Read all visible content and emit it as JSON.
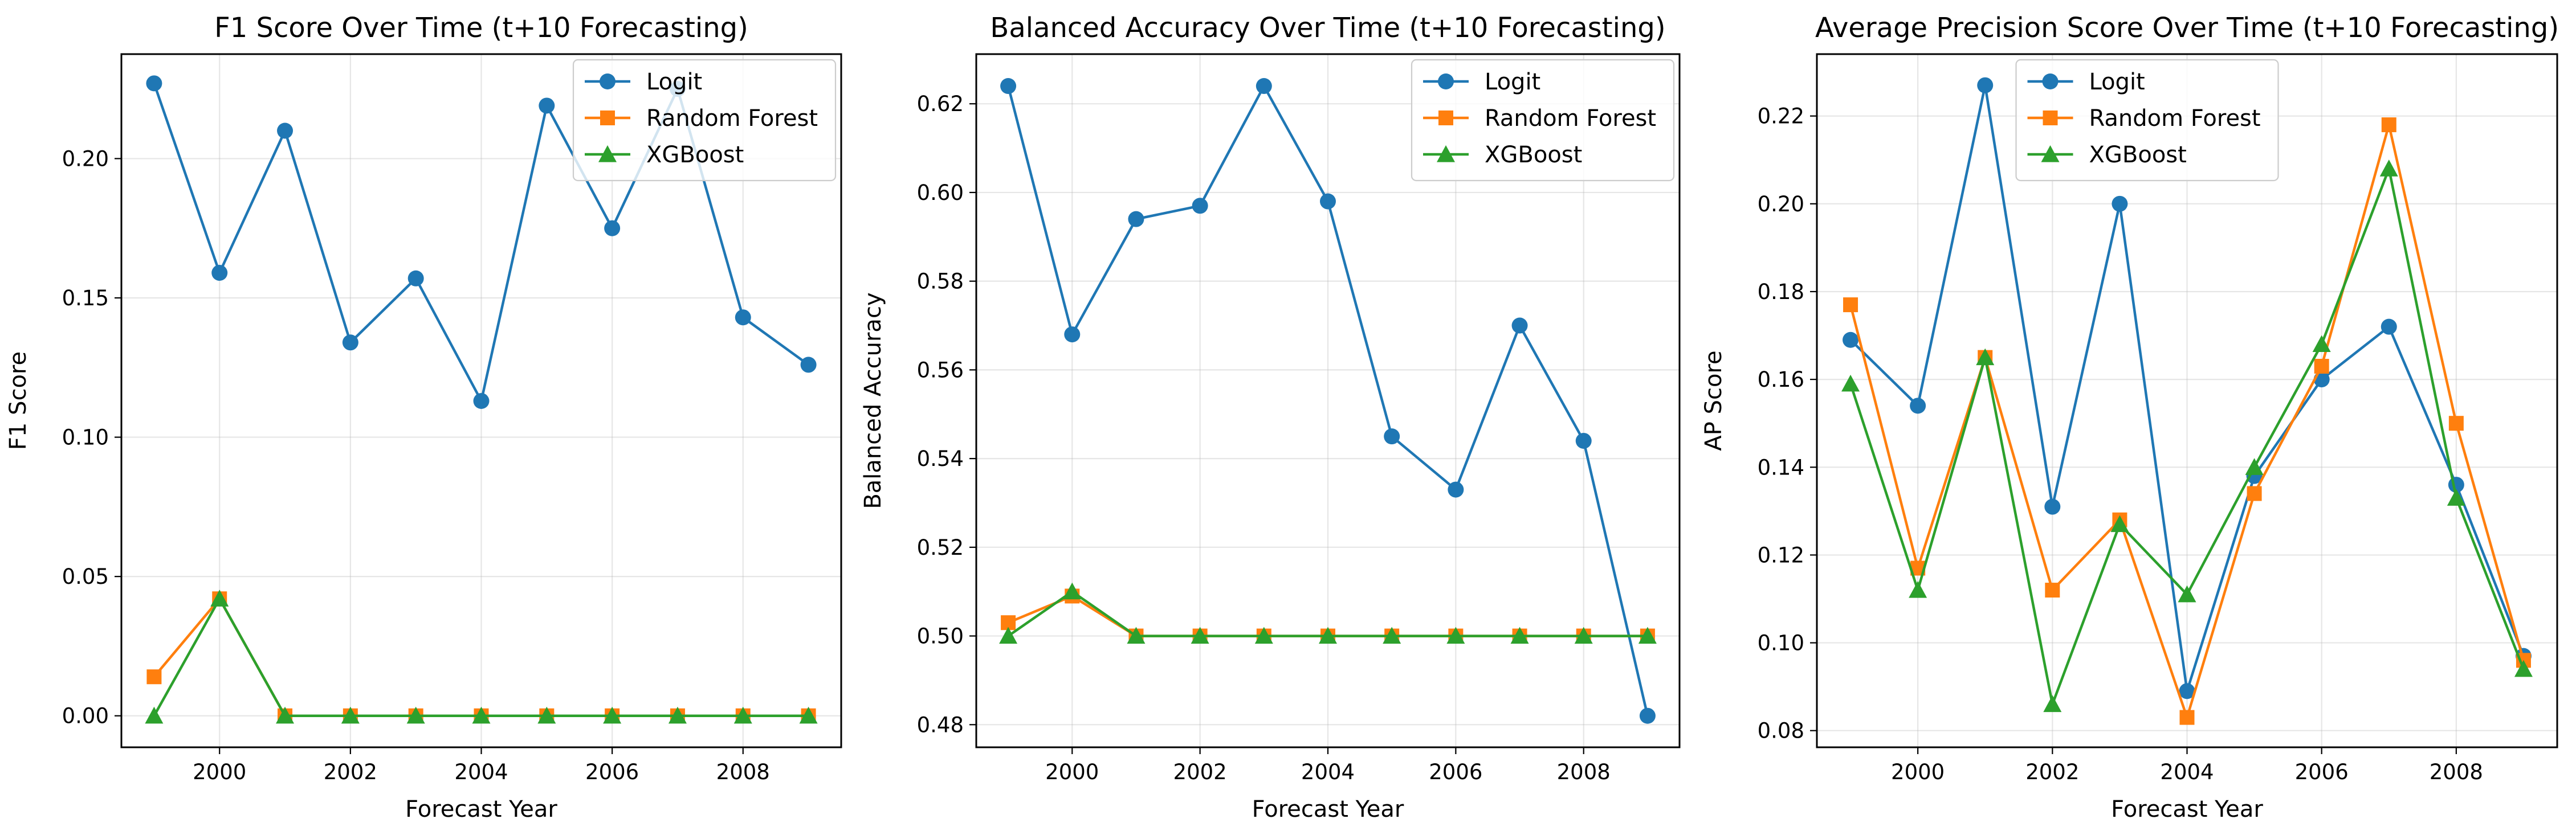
{
  "colors": {
    "Logit": "#1f77b4",
    "Random Forest": "#ff7f0e",
    "XGBoost": "#2ca02c"
  },
  "markers": {
    "Logit": "circle",
    "Random Forest": "square",
    "XGBoost": "triangle"
  },
  "chart_data": [
    {
      "type": "line",
      "title": "F1 Score Over Time (t+10 Forecasting)",
      "xlabel": "Forecast Year",
      "ylabel": "F1 Score",
      "x": [
        1999,
        2000,
        2001,
        2002,
        2003,
        2004,
        2005,
        2006,
        2007,
        2008,
        2009
      ],
      "xlim": [
        1998.5,
        2009.5
      ],
      "xticks": [
        2000,
        2002,
        2004,
        2006,
        2008
      ],
      "ylim": [
        -0.0113,
        0.2375
      ],
      "yticks": [
        0.0,
        0.05,
        0.1,
        0.15,
        0.2
      ],
      "ytick_labels": [
        "0.00",
        "0.05",
        "0.10",
        "0.15",
        "0.20"
      ],
      "grid": true,
      "legend": "top-right",
      "series": [
        {
          "name": "Logit",
          "values": [
            0.227,
            0.159,
            0.21,
            0.134,
            0.157,
            0.113,
            0.219,
            0.175,
            0.225,
            0.143,
            0.126
          ]
        },
        {
          "name": "Random Forest",
          "values": [
            0.014,
            0.042,
            0.0,
            0.0,
            0.0,
            0.0,
            0.0,
            0.0,
            0.0,
            0.0,
            0.0
          ]
        },
        {
          "name": "XGBoost",
          "values": [
            0.0,
            0.042,
            0.0,
            0.0,
            0.0,
            0.0,
            0.0,
            0.0,
            0.0,
            0.0,
            0.0
          ]
        }
      ]
    },
    {
      "type": "line",
      "title": "Balanced Accuracy Over Time (t+10 Forecasting)",
      "xlabel": "Forecast Year",
      "ylabel": "Balanced Accuracy",
      "x": [
        1999,
        2000,
        2001,
        2002,
        2003,
        2004,
        2005,
        2006,
        2007,
        2008,
        2009
      ],
      "xlim": [
        1998.5,
        2009.5
      ],
      "xticks": [
        2000,
        2002,
        2004,
        2006,
        2008
      ],
      "ylim": [
        0.4749,
        0.6312
      ],
      "yticks": [
        0.48,
        0.5,
        0.52,
        0.54,
        0.56,
        0.58,
        0.6,
        0.62
      ],
      "ytick_labels": [
        "0.48",
        "0.50",
        "0.52",
        "0.54",
        "0.56",
        "0.58",
        "0.60",
        "0.62"
      ],
      "grid": true,
      "legend": "top-right",
      "series": [
        {
          "name": "Logit",
          "values": [
            0.624,
            0.568,
            0.594,
            0.597,
            0.624,
            0.598,
            0.545,
            0.533,
            0.57,
            0.544,
            0.482
          ]
        },
        {
          "name": "Random Forest",
          "values": [
            0.503,
            0.509,
            0.5,
            0.5,
            0.5,
            0.5,
            0.5,
            0.5,
            0.5,
            0.5,
            0.5
          ]
        },
        {
          "name": "XGBoost",
          "values": [
            0.5,
            0.51,
            0.5,
            0.5,
            0.5,
            0.5,
            0.5,
            0.5,
            0.5,
            0.5,
            0.5
          ]
        }
      ]
    },
    {
      "type": "line",
      "title": "Average Precision Score Over Time (t+10 Forecasting)",
      "xlabel": "Forecast Year",
      "ylabel": "AP Score",
      "x": [
        1999,
        2000,
        2001,
        2002,
        2003,
        2004,
        2005,
        2006,
        2007,
        2008,
        2009
      ],
      "xlim": [
        1998.5,
        2009.5
      ],
      "xticks": [
        2000,
        2002,
        2004,
        2006,
        2008
      ],
      "ylim": [
        0.0762,
        0.2341
      ],
      "yticks": [
        0.08,
        0.1,
        0.12,
        0.14,
        0.16,
        0.18,
        0.2,
        0.22
      ],
      "ytick_labels": [
        "0.08",
        "0.10",
        "0.12",
        "0.14",
        "0.16",
        "0.18",
        "0.20",
        "0.22"
      ],
      "grid": true,
      "legend": "top-center",
      "series": [
        {
          "name": "Logit",
          "values": [
            0.169,
            0.154,
            0.227,
            0.131,
            0.2,
            0.089,
            0.138,
            0.16,
            0.172,
            0.136,
            0.097
          ]
        },
        {
          "name": "Random Forest",
          "values": [
            0.177,
            0.117,
            0.165,
            0.112,
            0.128,
            0.083,
            0.134,
            0.163,
            0.218,
            0.15,
            0.096
          ]
        },
        {
          "name": "XGBoost",
          "values": [
            0.159,
            0.112,
            0.165,
            0.086,
            0.127,
            0.111,
            0.14,
            0.168,
            0.208,
            0.133,
            0.094
          ]
        }
      ]
    }
  ]
}
